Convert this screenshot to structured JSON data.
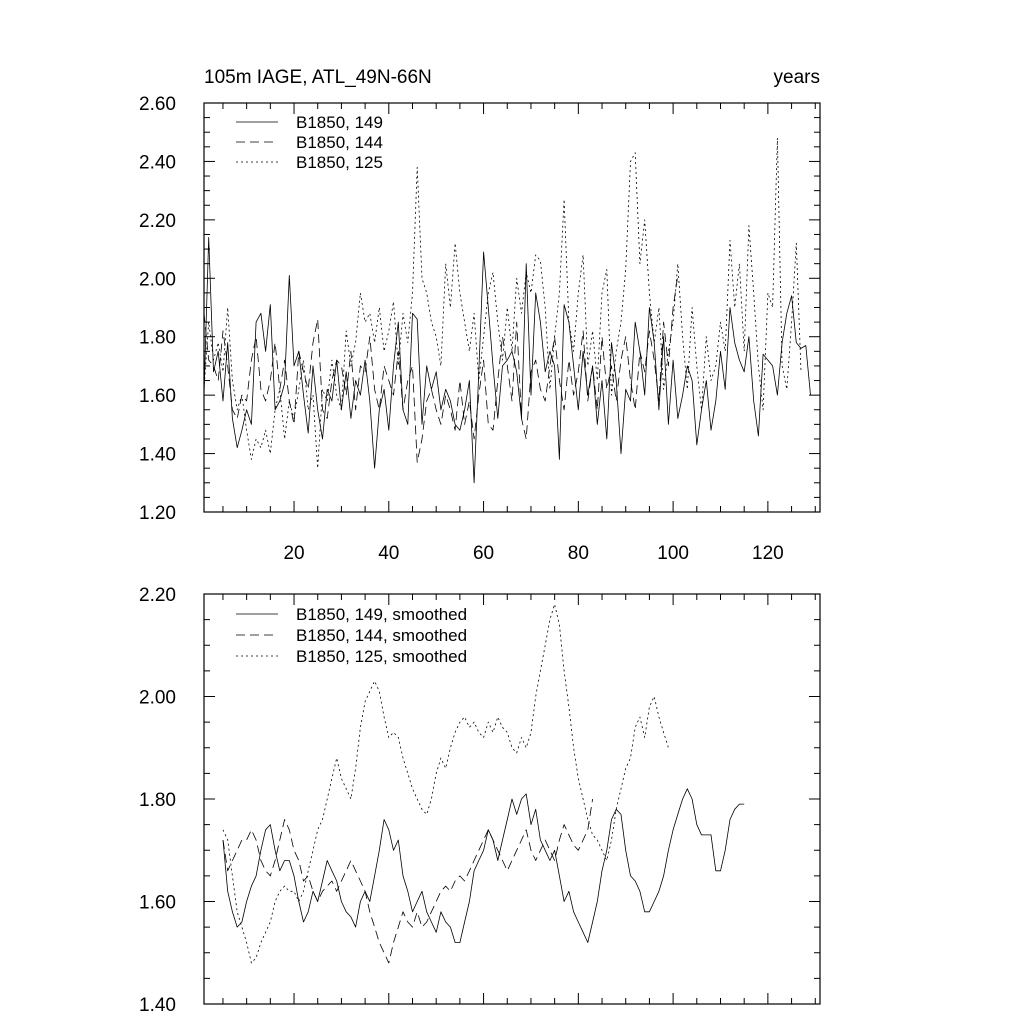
{
  "chart_data": [
    {
      "type": "line",
      "title_left": "105m IAGE, ATL_49N-66N",
      "title_right": "years",
      "xlim": [
        1,
        131
      ],
      "ylim": [
        1.2,
        2.6
      ],
      "xticks": [
        20,
        40,
        60,
        80,
        100,
        120
      ],
      "xtick_labels": [
        "20",
        "40",
        "60",
        "80",
        "100",
        "120"
      ],
      "yticks": [
        1.2,
        1.4,
        1.6,
        1.8,
        2.0,
        2.2,
        2.4,
        2.6
      ],
      "ytick_labels": [
        "1.20",
        "1.40",
        "1.60",
        "1.80",
        "2.00",
        "2.20",
        "2.40",
        "2.60"
      ],
      "legend_position": "top-left",
      "series": [
        {
          "name": "B1850, 149",
          "dash": "solid",
          "x_start": 1,
          "values": [
            1.6,
            2.14,
            1.68,
            1.75,
            1.58,
            1.78,
            1.52,
            1.42,
            1.48,
            1.55,
            1.5,
            1.85,
            1.88,
            1.75,
            1.91,
            1.55,
            1.58,
            1.64,
            2.01,
            1.7,
            1.75,
            1.6,
            1.47,
            1.7,
            1.55,
            1.45,
            1.62,
            1.58,
            1.72,
            1.55,
            1.68,
            1.52,
            1.65,
            1.6,
            1.72,
            1.58,
            1.35,
            1.55,
            1.62,
            1.48,
            1.7,
            1.85,
            1.55,
            1.5,
            1.88,
            1.86,
            1.5,
            1.7,
            1.62,
            1.68,
            1.55,
            1.62,
            1.58,
            1.5,
            1.48,
            1.55,
            1.65,
            1.3,
            1.68,
            2.09,
            1.9,
            1.7,
            1.52,
            1.7,
            1.72,
            1.75,
            1.68,
            1.52,
            2.05,
            1.6,
            1.95,
            1.85,
            1.68,
            1.75,
            1.7,
            1.38,
            1.91,
            1.85,
            1.7,
            1.55,
            1.75,
            1.6,
            1.7,
            1.5,
            1.65,
            1.45,
            1.78,
            1.65,
            1.4,
            1.62,
            1.58,
            1.85,
            1.75,
            1.6,
            1.9,
            1.78,
            1.55,
            1.8,
            1.5,
            1.72,
            1.52,
            1.6,
            1.7,
            1.65,
            1.43,
            1.55,
            1.65,
            1.48,
            1.58,
            1.75,
            1.62,
            1.9,
            1.78,
            1.72,
            1.68,
            1.8,
            1.58,
            1.46,
            1.74,
            1.72,
            1.7,
            1.6,
            1.78,
            1.88,
            1.94,
            1.78,
            1.76,
            1.77,
            1.6
          ]
        },
        {
          "name": "B1850, 144",
          "dash": "dashed",
          "x_start": 1,
          "values": [
            1.88,
            1.72,
            1.7,
            1.65,
            1.82,
            1.7,
            1.55,
            1.52,
            1.6,
            1.58,
            1.72,
            1.8,
            1.62,
            1.58,
            1.65,
            1.78,
            1.62,
            1.72,
            1.58,
            1.5,
            1.75,
            1.68,
            1.62,
            1.78,
            1.86,
            1.55,
            1.52,
            1.65,
            1.72,
            1.7,
            1.6,
            1.75,
            1.55,
            1.7,
            1.68,
            1.8,
            1.62,
            1.55,
            1.7,
            1.65,
            1.6,
            1.75,
            1.55,
            1.65,
            1.7,
            1.37,
            1.45,
            1.58,
            1.62,
            1.55,
            1.5,
            1.6,
            1.55,
            1.48,
            1.65,
            1.5,
            1.58,
            1.45,
            1.6,
            1.72,
            1.5,
            1.48,
            1.65,
            1.8,
            1.7,
            1.58,
            1.85,
            1.52,
            1.45,
            1.68,
            1.72,
            1.62,
            1.58,
            1.7,
            1.8,
            1.65,
            1.55,
            1.72,
            1.6,
            1.68,
            1.82,
            1.58,
            1.7,
            1.55,
            1.8,
            1.62,
            1.7,
            1.58,
            1.72,
            1.8,
            1.65,
            1.55,
            1.75,
            1.68,
            1.82,
            1.72,
            1.58,
            1.85,
            1.7,
            1.9,
            2.01
          ]
        },
        {
          "name": "B1850, 125",
          "dash": "dotted",
          "x_start": 1,
          "values": [
            1.62,
            1.85,
            1.72,
            1.78,
            1.68,
            1.9,
            1.65,
            1.55,
            1.6,
            1.48,
            1.38,
            1.45,
            1.42,
            1.48,
            1.4,
            1.55,
            1.62,
            1.45,
            1.58,
            1.52,
            1.62,
            1.72,
            1.55,
            1.6,
            1.35,
            1.62,
            1.58,
            1.72,
            1.6,
            1.55,
            1.82,
            1.7,
            1.78,
            1.95,
            1.85,
            1.88,
            1.78,
            1.9,
            1.75,
            1.82,
            1.92,
            1.7,
            1.88,
            1.78,
            1.95,
            2.38,
            2.0,
            1.95,
            1.85,
            1.8,
            1.7,
            2.05,
            1.9,
            2.12,
            1.95,
            1.85,
            1.75,
            1.88,
            1.65,
            1.8,
            1.95,
            2.02,
            1.85,
            1.72,
            1.9,
            1.75,
            2.0,
            1.88,
            2.02,
            1.95,
            2.08,
            2.06,
            1.9,
            1.62,
            1.8,
            1.95,
            2.27,
            1.85,
            1.75,
            1.95,
            2.08,
            1.7,
            1.82,
            1.65,
            1.95,
            2.03,
            1.6,
            1.75,
            1.85,
            2.03,
            2.4,
            2.43,
            2.05,
            2.2,
            1.95,
            1.78,
            1.9,
            1.62,
            1.75,
            1.85,
            2.05,
            1.8,
            1.62,
            1.9,
            1.7,
            1.55,
            1.8,
            1.65,
            1.7,
            1.85,
            1.75,
            2.13,
            1.9,
            2.05,
            1.75,
            2.18,
            1.95,
            1.7,
            1.55,
            1.95,
            1.9,
            2.48,
            1.7,
            1.62,
            1.85,
            2.12,
            1.68
          ]
        }
      ]
    },
    {
      "type": "line",
      "xlim": [
        1,
        131
      ],
      "ylim": [
        1.4,
        2.2
      ],
      "xticks": [
        20,
        40,
        60,
        80,
        100,
        120
      ],
      "yticks": [
        1.4,
        1.6,
        1.8,
        2.0,
        2.2
      ],
      "ytick_labels": [
        "1.40",
        "1.60",
        "1.80",
        "2.00",
        "2.20"
      ],
      "legend_position": "top-left",
      "series": [
        {
          "name": "B1850, 149, smoothed",
          "dash": "solid",
          "x_start": 5,
          "values": [
            1.72,
            1.62,
            1.58,
            1.55,
            1.56,
            1.6,
            1.63,
            1.65,
            1.7,
            1.74,
            1.75,
            1.7,
            1.66,
            1.68,
            1.68,
            1.65,
            1.6,
            1.56,
            1.58,
            1.62,
            1.6,
            1.64,
            1.68,
            1.66,
            1.64,
            1.6,
            1.58,
            1.57,
            1.55,
            1.6,
            1.62,
            1.6,
            1.65,
            1.7,
            1.76,
            1.74,
            1.7,
            1.72,
            1.65,
            1.62,
            1.58,
            1.6,
            1.62,
            1.58,
            1.56,
            1.54,
            1.58,
            1.56,
            1.55,
            1.52,
            1.52,
            1.56,
            1.6,
            1.66,
            1.68,
            1.7,
            1.74,
            1.72,
            1.68,
            1.72,
            1.76,
            1.8,
            1.77,
            1.8,
            1.81,
            1.75,
            1.78,
            1.72,
            1.7,
            1.68,
            1.7,
            1.65,
            1.6,
            1.62,
            1.58,
            1.56,
            1.54,
            1.52,
            1.56,
            1.6,
            1.66,
            1.7,
            1.76,
            1.78,
            1.77,
            1.7,
            1.65,
            1.64,
            1.62,
            1.58,
            1.58,
            1.6,
            1.62,
            1.65,
            1.7,
            1.74,
            1.77,
            1.8,
            1.82,
            1.8,
            1.75,
            1.73,
            1.73,
            1.73,
            1.66,
            1.66,
            1.7,
            1.76,
            1.78,
            1.79,
            1.79
          ]
        },
        {
          "name": "B1850, 144, smoothed",
          "dash": "dashed",
          "x_start": 5,
          "values": [
            1.72,
            1.66,
            1.68,
            1.7,
            1.72,
            1.72,
            1.74,
            1.72,
            1.68,
            1.66,
            1.65,
            1.68,
            1.72,
            1.76,
            1.74,
            1.7,
            1.68,
            1.64,
            1.65,
            1.62,
            1.6,
            1.62,
            1.63,
            1.64,
            1.62,
            1.64,
            1.66,
            1.68,
            1.66,
            1.64,
            1.62,
            1.58,
            1.55,
            1.52,
            1.5,
            1.48,
            1.52,
            1.55,
            1.58,
            1.56,
            1.55,
            1.58,
            1.55,
            1.56,
            1.58,
            1.6,
            1.62,
            1.63,
            1.62,
            1.64,
            1.65,
            1.64,
            1.66,
            1.68,
            1.7,
            1.72,
            1.74,
            1.72,
            1.7,
            1.68,
            1.66,
            1.68,
            1.7,
            1.72,
            1.74,
            1.7,
            1.68,
            1.7,
            1.72,
            1.7,
            1.68,
            1.72,
            1.75,
            1.73,
            1.71,
            1.7,
            1.72,
            1.74,
            1.8
          ]
        },
        {
          "name": "B1850, 125, smoothed",
          "dash": "dotted",
          "x_start": 5,
          "values": [
            1.74,
            1.72,
            1.65,
            1.58,
            1.55,
            1.52,
            1.48,
            1.49,
            1.52,
            1.54,
            1.56,
            1.6,
            1.62,
            1.63,
            1.62,
            1.62,
            1.6,
            1.62,
            1.66,
            1.7,
            1.74,
            1.76,
            1.8,
            1.84,
            1.88,
            1.84,
            1.82,
            1.8,
            1.86,
            1.94,
            1.99,
            2.01,
            2.03,
            2.01,
            1.96,
            1.92,
            1.93,
            1.92,
            1.88,
            1.85,
            1.82,
            1.8,
            1.78,
            1.77,
            1.8,
            1.85,
            1.88,
            1.86,
            1.9,
            1.93,
            1.95,
            1.96,
            1.94,
            1.95,
            1.93,
            1.92,
            1.95,
            1.93,
            1.96,
            1.94,
            1.93,
            1.9,
            1.89,
            1.92,
            1.9,
            1.93,
            2.0,
            2.05,
            2.1,
            2.15,
            2.18,
            2.14,
            2.05,
            1.98,
            1.9,
            1.84,
            1.8,
            1.76,
            1.73,
            1.72,
            1.7,
            1.68,
            1.72,
            1.78,
            1.82,
            1.86,
            1.88,
            1.94,
            1.96,
            1.92,
            1.98,
            2.0,
            1.96,
            1.93,
            1.9
          ]
        }
      ]
    }
  ]
}
